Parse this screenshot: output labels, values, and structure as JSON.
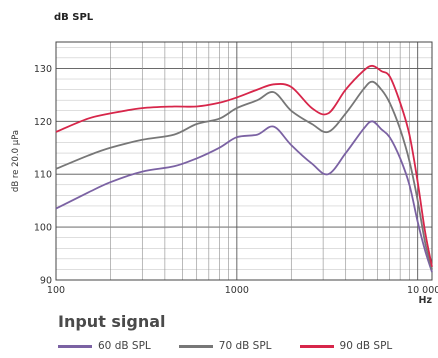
{
  "chart_data": {
    "type": "line",
    "title": "dB SPL",
    "ylabel": "dB re 20.0 µPa",
    "xlabel": "Hz",
    "x_scale": "log",
    "xlim": [
      100,
      12000
    ],
    "ylim": [
      90,
      135
    ],
    "x_ticks": [
      100,
      1000,
      10000
    ],
    "x_tick_labels": [
      "100",
      "1000",
      "10 000"
    ],
    "y_ticks": [
      90,
      100,
      110,
      120,
      130
    ],
    "y_tick_labels": [
      "90",
      "100",
      "110",
      "120",
      "130"
    ],
    "grid": true,
    "legend_title": "Input signal",
    "legend_position": "bottom",
    "series": [
      {
        "name": "60 dB SPL",
        "color": "#7b62a3",
        "x": [
          100,
          150,
          200,
          300,
          450,
          600,
          800,
          1000,
          1300,
          1600,
          2000,
          2600,
          3200,
          4000,
          5000,
          5600,
          6300,
          7000,
          8000,
          9000,
          10000,
          11000,
          12000
        ],
        "y": [
          103.5,
          106.5,
          108.5,
          110.5,
          111.5,
          113.0,
          115.0,
          117.0,
          117.5,
          119.0,
          115.5,
          112.0,
          110.0,
          114.0,
          118.5,
          120.0,
          118.5,
          117.0,
          113.0,
          108.0,
          101.0,
          95.5,
          91.5
        ]
      },
      {
        "name": "70 dB SPL",
        "color": "#777777",
        "x": [
          100,
          150,
          200,
          300,
          450,
          600,
          800,
          1000,
          1300,
          1600,
          2000,
          2600,
          3200,
          4000,
          5000,
          5600,
          6300,
          7000,
          8000,
          9000,
          10000,
          11000,
          12000
        ],
        "y": [
          111.0,
          113.5,
          115.0,
          116.5,
          117.5,
          119.5,
          120.5,
          122.5,
          124.0,
          125.5,
          122.0,
          119.5,
          118.0,
          121.5,
          126.0,
          127.5,
          126.0,
          123.5,
          118.5,
          112.5,
          105.0,
          97.0,
          92.0
        ]
      },
      {
        "name": "90 dB SPL",
        "color": "#d7264a",
        "x": [
          100,
          150,
          200,
          300,
          450,
          600,
          800,
          1000,
          1300,
          1600,
          2000,
          2600,
          3200,
          4000,
          5000,
          5600,
          6300,
          7000,
          8000,
          9000,
          10000,
          11000,
          12000
        ],
        "y": [
          118.0,
          120.5,
          121.5,
          122.5,
          122.8,
          122.8,
          123.5,
          124.5,
          126.0,
          127.0,
          126.5,
          122.5,
          121.5,
          126.0,
          129.5,
          130.5,
          129.5,
          128.5,
          123.5,
          117.5,
          108.5,
          99.0,
          92.5
        ]
      }
    ]
  }
}
